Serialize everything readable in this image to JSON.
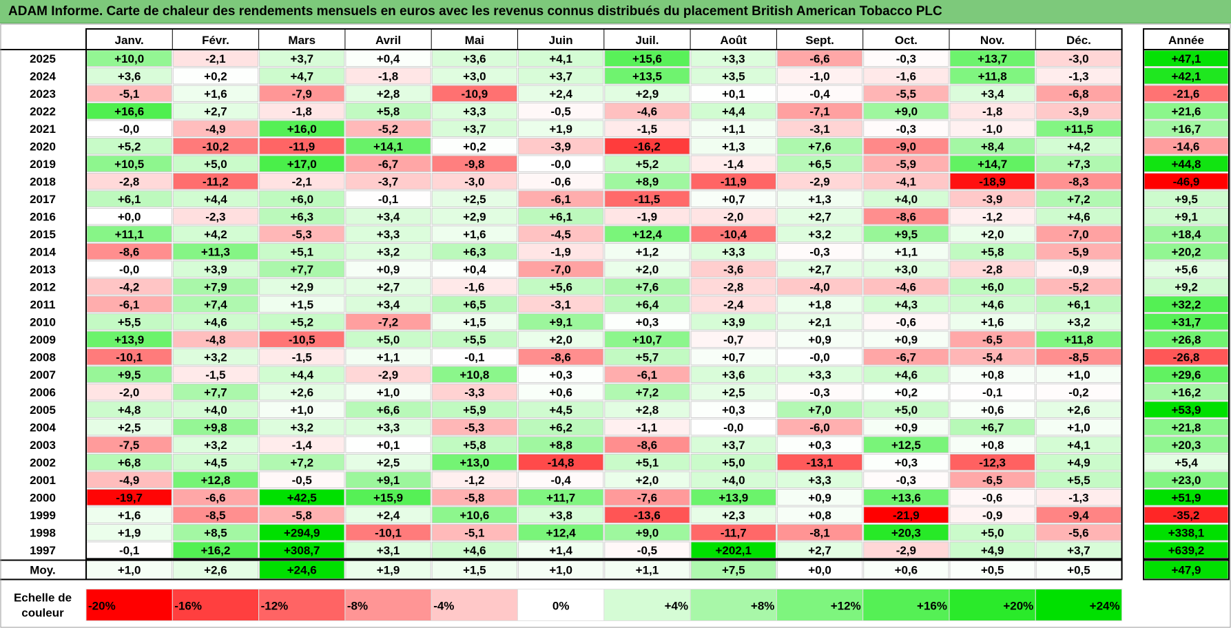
{
  "title": "ADAM Informe. Carte de chaleur des rendements mensuels en euros avec les revenus connus distribués du placement British American Tobacco PLC",
  "chart_data": {
    "type": "heatmap",
    "months": [
      "Janv.",
      "Févr.",
      "Mars",
      "Avril",
      "Mai",
      "Juin",
      "Juil.",
      "Août",
      "Sept.",
      "Oct.",
      "Nov.",
      "Déc."
    ],
    "year_header": "Année",
    "rows": [
      {
        "year": "2025",
        "values": [
          "+10,0",
          "-2,1",
          "+3,7",
          "+0,4",
          "+3,6",
          "+4,1",
          "+15,6",
          "+3,3",
          "-6,6",
          "-0,3",
          "+13,7",
          "-3,0"
        ],
        "annual": "+47,1"
      },
      {
        "year": "2024",
        "values": [
          "+3,6",
          "+0,2",
          "+4,7",
          "-1,8",
          "+3,0",
          "+3,7",
          "+13,5",
          "+3,5",
          "-1,0",
          "-1,6",
          "+11,8",
          "-1,3"
        ],
        "annual": "+42,1"
      },
      {
        "year": "2023",
        "values": [
          "-5,1",
          "+1,6",
          "-7,9",
          "+2,8",
          "-10,9",
          "+2,4",
          "+2,9",
          "+0,1",
          "-0,4",
          "-5,5",
          "+3,4",
          "-6,8"
        ],
        "annual": "-21,6"
      },
      {
        "year": "2022",
        "values": [
          "+16,6",
          "+2,7",
          "-1,8",
          "+5,8",
          "+3,3",
          "-0,5",
          "-4,6",
          "+4,4",
          "-7,1",
          "+9,0",
          "-1,8",
          "-3,9"
        ],
        "annual": "+21,6"
      },
      {
        "year": "2021",
        "values": [
          "-0,0",
          "-4,9",
          "+16,0",
          "-5,2",
          "+3,7",
          "+1,9",
          "-1,5",
          "+1,1",
          "-3,1",
          "-0,3",
          "-1,0",
          "+11,5"
        ],
        "annual": "+16,7"
      },
      {
        "year": "2020",
        "values": [
          "+5,2",
          "-10,2",
          "-11,9",
          "+14,1",
          "+0,2",
          "-3,9",
          "-16,2",
          "+1,3",
          "+7,6",
          "-9,0",
          "+8,4",
          "+4,2"
        ],
        "annual": "-14,6"
      },
      {
        "year": "2019",
        "values": [
          "+10,5",
          "+5,0",
          "+17,0",
          "-6,7",
          "-9,8",
          "-0,0",
          "+5,2",
          "-1,4",
          "+6,5",
          "-5,9",
          "+14,7",
          "+7,3"
        ],
        "annual": "+44,8"
      },
      {
        "year": "2018",
        "values": [
          "-2,8",
          "-11,2",
          "-2,1",
          "-3,7",
          "-3,0",
          "-0,6",
          "+8,9",
          "-11,9",
          "-2,9",
          "-4,1",
          "-18,9",
          "-8,3"
        ],
        "annual": "-46,9"
      },
      {
        "year": "2017",
        "values": [
          "+6,1",
          "+4,4",
          "+6,0",
          "-0,1",
          "+2,5",
          "-6,1",
          "-11,5",
          "+0,7",
          "+1,3",
          "+4,0",
          "-3,9",
          "+7,2"
        ],
        "annual": "+9,5"
      },
      {
        "year": "2016",
        "values": [
          "+0,0",
          "-2,3",
          "+6,3",
          "+3,4",
          "+2,9",
          "+6,1",
          "-1,9",
          "-2,0",
          "+2,7",
          "-8,6",
          "-1,2",
          "+4,6"
        ],
        "annual": "+9,1"
      },
      {
        "year": "2015",
        "values": [
          "+11,1",
          "+4,2",
          "-5,3",
          "+3,3",
          "+1,6",
          "-4,5",
          "+12,4",
          "-10,4",
          "+3,2",
          "+9,5",
          "+2,0",
          "-7,0"
        ],
        "annual": "+18,4"
      },
      {
        "year": "2014",
        "values": [
          "-8,6",
          "+11,3",
          "+5,1",
          "+3,2",
          "+6,3",
          "-1,9",
          "+1,2",
          "+3,3",
          "-0,3",
          "+1,1",
          "+5,8",
          "-5,9"
        ],
        "annual": "+20,2"
      },
      {
        "year": "2013",
        "values": [
          "-0,0",
          "+3,9",
          "+7,7",
          "+0,9",
          "+0,4",
          "-7,0",
          "+2,0",
          "-3,6",
          "+2,7",
          "+3,0",
          "-2,8",
          "-0,9"
        ],
        "annual": "+5,6"
      },
      {
        "year": "2012",
        "values": [
          "-4,2",
          "+7,9",
          "+2,9",
          "+2,7",
          "-1,6",
          "+5,6",
          "+7,6",
          "-2,8",
          "-4,0",
          "-4,6",
          "+6,0",
          "-5,2"
        ],
        "annual": "+9,2"
      },
      {
        "year": "2011",
        "values": [
          "-6,1",
          "+7,4",
          "+1,5",
          "+3,4",
          "+6,5",
          "-3,1",
          "+6,4",
          "-2,4",
          "+1,8",
          "+4,3",
          "+4,6",
          "+6,1"
        ],
        "annual": "+32,2"
      },
      {
        "year": "2010",
        "values": [
          "+5,5",
          "+4,6",
          "+5,2",
          "-7,2",
          "+1,5",
          "+9,1",
          "+0,3",
          "+3,9",
          "+2,1",
          "-0,6",
          "+1,6",
          "+3,2"
        ],
        "annual": "+31,7"
      },
      {
        "year": "2009",
        "values": [
          "+13,9",
          "-4,8",
          "-10,5",
          "+5,0",
          "+5,5",
          "+2,0",
          "+10,7",
          "-0,7",
          "+0,9",
          "+0,9",
          "-6,5",
          "+11,8"
        ],
        "annual": "+26,8"
      },
      {
        "year": "2008",
        "values": [
          "-10,1",
          "+3,2",
          "-1,5",
          "+1,1",
          "-0,1",
          "-8,6",
          "+5,7",
          "+0,7",
          "-0,0",
          "-6,7",
          "-5,4",
          "-8,5"
        ],
        "annual": "-26,8"
      },
      {
        "year": "2007",
        "values": [
          "+9,5",
          "-1,5",
          "+4,4",
          "-2,9",
          "+10,8",
          "+0,3",
          "-6,1",
          "+3,6",
          "+3,3",
          "+4,6",
          "+0,8",
          "+1,0"
        ],
        "annual": "+29,6"
      },
      {
        "year": "2006",
        "values": [
          "-2,0",
          "+7,7",
          "+2,6",
          "+1,0",
          "-3,3",
          "+0,6",
          "+7,2",
          "+2,5",
          "-0,3",
          "+0,2",
          "-0,1",
          "-0,2"
        ],
        "annual": "+16,2"
      },
      {
        "year": "2005",
        "values": [
          "+4,8",
          "+4,0",
          "+1,0",
          "+6,6",
          "+5,9",
          "+4,5",
          "+2,8",
          "+0,3",
          "+7,0",
          "+5,0",
          "+0,6",
          "+2,6"
        ],
        "annual": "+53,9"
      },
      {
        "year": "2004",
        "values": [
          "+2,5",
          "+9,8",
          "+3,2",
          "+3,3",
          "-5,3",
          "+6,2",
          "-1,1",
          "-0,0",
          "-6,0",
          "+0,9",
          "+6,7",
          "+1,0"
        ],
        "annual": "+21,8"
      },
      {
        "year": "2003",
        "values": [
          "-7,5",
          "+3,2",
          "-1,4",
          "+0,1",
          "+5,8",
          "+8,8",
          "-8,6",
          "+3,7",
          "+0,3",
          "+12,5",
          "+0,8",
          "+4,1"
        ],
        "annual": "+20,3"
      },
      {
        "year": "2002",
        "values": [
          "+6,8",
          "+4,5",
          "+7,2",
          "+2,5",
          "+13,0",
          "-14,8",
          "+5,1",
          "+5,0",
          "-13,1",
          "+0,3",
          "-12,3",
          "+4,9"
        ],
        "annual": "+5,4"
      },
      {
        "year": "2001",
        "values": [
          "-4,9",
          "+12,8",
          "-0,5",
          "+9,1",
          "-1,2",
          "-0,4",
          "+2,0",
          "+4,0",
          "+3,3",
          "-0,3",
          "-6,5",
          "+5,5"
        ],
        "annual": "+23,0"
      },
      {
        "year": "2000",
        "values": [
          "-19,7",
          "-6,6",
          "+42,5",
          "+15,9",
          "-5,8",
          "+11,7",
          "-7,6",
          "+13,9",
          "+0,9",
          "+13,6",
          "-0,6",
          "-1,3"
        ],
        "annual": "+51,9"
      },
      {
        "year": "1999",
        "values": [
          "+1,6",
          "-8,5",
          "-5,8",
          "+2,4",
          "+10,6",
          "+3,8",
          "-13,6",
          "+2,3",
          "+0,8",
          "-21,9",
          "-0,9",
          "-9,4"
        ],
        "annual": "-35,2"
      },
      {
        "year": "1998",
        "values": [
          "+1,9",
          "+8,5",
          "+294,9",
          "-10,1",
          "-5,1",
          "+12,4",
          "+9,0",
          "-11,7",
          "-8,1",
          "+20,3",
          "+5,0",
          "-5,6"
        ],
        "annual": "+338,1"
      },
      {
        "year": "1997",
        "values": [
          "-0,1",
          "+16,2",
          "+308,7",
          "+3,1",
          "+4,6",
          "+1,4",
          "-0,5",
          "+202,1",
          "+2,7",
          "-2,9",
          "+4,9",
          "+3,7"
        ],
        "annual": "+639,2"
      }
    ],
    "average": {
      "label": "Moy.",
      "values": [
        "+1,0",
        "+2,6",
        "+24,6",
        "+1,9",
        "+1,5",
        "+1,0",
        "+1,1",
        "+7,5",
        "+0,0",
        "+0,6",
        "+0,5",
        "+0,5"
      ],
      "annual": "+47,9"
    },
    "scale": {
      "label_lines": [
        "Echelle de",
        "couleur"
      ],
      "steps": [
        {
          "label": "-20%",
          "value": -20,
          "color": "#ff0000"
        },
        {
          "label": "-16%",
          "value": -16,
          "color": "#ff3f3f"
        },
        {
          "label": "-12%",
          "value": -12,
          "color": "#ff6464"
        },
        {
          "label": "-8%",
          "value": -8,
          "color": "#ff9595"
        },
        {
          "label": "-4%",
          "value": -4,
          "color": "#ffc8c8"
        },
        {
          "label": "0%",
          "value": 0,
          "color": "#ffffff"
        },
        {
          "label": "+4%",
          "value": 4,
          "color": "#d5fcd5"
        },
        {
          "label": "+8%",
          "value": 8,
          "color": "#a8f7a8"
        },
        {
          "label": "+12%",
          "value": 12,
          "color": "#7ef57e"
        },
        {
          "label": "+16%",
          "value": 16,
          "color": "#55f055"
        },
        {
          "label": "+20%",
          "value": 20,
          "color": "#2aea2a"
        },
        {
          "label": "+24%",
          "value": 24,
          "color": "#00e000"
        }
      ]
    }
  }
}
